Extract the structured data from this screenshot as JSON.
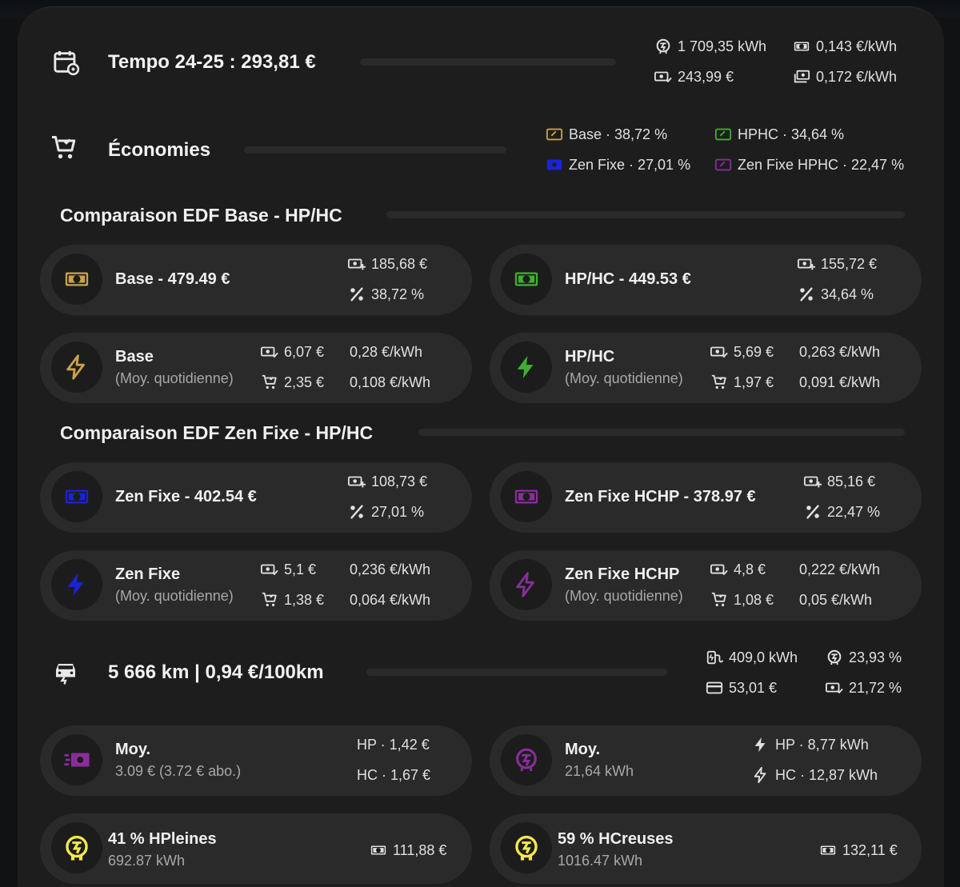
{
  "colors": {
    "base": "#c9a34a",
    "hphc": "#3fae2f",
    "zen_fixe": "#1b22d9",
    "zen_hphc": "#8a2d9c",
    "yellow": "#f2e84a"
  },
  "tempo": {
    "title": "Tempo 24-25 : 293,81 €",
    "stats": [
      "1 709,35 kWh",
      "0,143 €/kWh",
      "243,99 €",
      "0,172 €/kWh"
    ]
  },
  "economies": {
    "title": "Économies",
    "tags": [
      "Base · 38,72 %",
      "HPHC · 34,64 %",
      "Zen Fixe · 27,01 %",
      "Zen Fixe HPHC · 22,47 %"
    ]
  },
  "section_base": {
    "title": "Comparaison EDF Base - HP/HC",
    "cards": [
      {
        "label": "Base - 479.49 €",
        "saving": "185,68 €",
        "percent": "38,72 %"
      },
      {
        "label": "HP/HC - 449.53 €",
        "saving": "155,72 €",
        "percent": "34,64 %"
      }
    ],
    "daily": [
      {
        "label": "Base",
        "sub": "(Moy. quotidienne)",
        "cost": "6,07 €",
        "price": "0,28 €/kWh",
        "save": "2,35 €",
        "save_price": "0,108 €/kWh"
      },
      {
        "label": "HP/HC",
        "sub": "(Moy. quotidienne)",
        "cost": "5,69 €",
        "price": "0,263 €/kWh",
        "save": "1,97 €",
        "save_price": "0,091 €/kWh"
      }
    ]
  },
  "section_zen": {
    "title": "Comparaison EDF Zen Fixe - HP/HC",
    "cards": [
      {
        "label": "Zen Fixe - 402.54 €",
        "saving": "108,73 €",
        "percent": "27,01 %"
      },
      {
        "label": "Zen Fixe HCHP - 378.97 €",
        "saving": "85,16 €",
        "percent": "22,47 %"
      }
    ],
    "daily": [
      {
        "label": "Zen Fixe",
        "sub": "(Moy. quotidienne)",
        "cost": "5,1 €",
        "price": "0,236 €/kWh",
        "save": "1,38 €",
        "save_price": "0,064 €/kWh"
      },
      {
        "label": "Zen Fixe HCHP",
        "sub": "(Moy. quotidienne)",
        "cost": "4,8 €",
        "price": "0,222 €/kWh",
        "save": "1,08 €",
        "save_price": "0,05 €/kWh"
      }
    ]
  },
  "car": {
    "title": "5 666 km | 0,94 €/100km",
    "stats": [
      "409,0 kWh",
      "23,93 %",
      "53,01 €",
      "21,72 %"
    ]
  },
  "averages": [
    {
      "label": "Moy.",
      "sub": "3.09 € (3.72 € abo.)",
      "line1": "HP · 1,42 €",
      "line2": "HC · 1,67 €"
    },
    {
      "label": "Moy.",
      "sub": "21,64 kWh",
      "line1": "HP · 8,77 kWh",
      "line2": "HC · 12,87 kWh"
    }
  ],
  "hours": [
    {
      "label": "41 % HPleines",
      "sub": "692.87 kWh",
      "cost": "111,88 €"
    },
    {
      "label": "59 % HCreuses",
      "sub": "1016.47 kWh",
      "cost": "132,11 €"
    }
  ]
}
